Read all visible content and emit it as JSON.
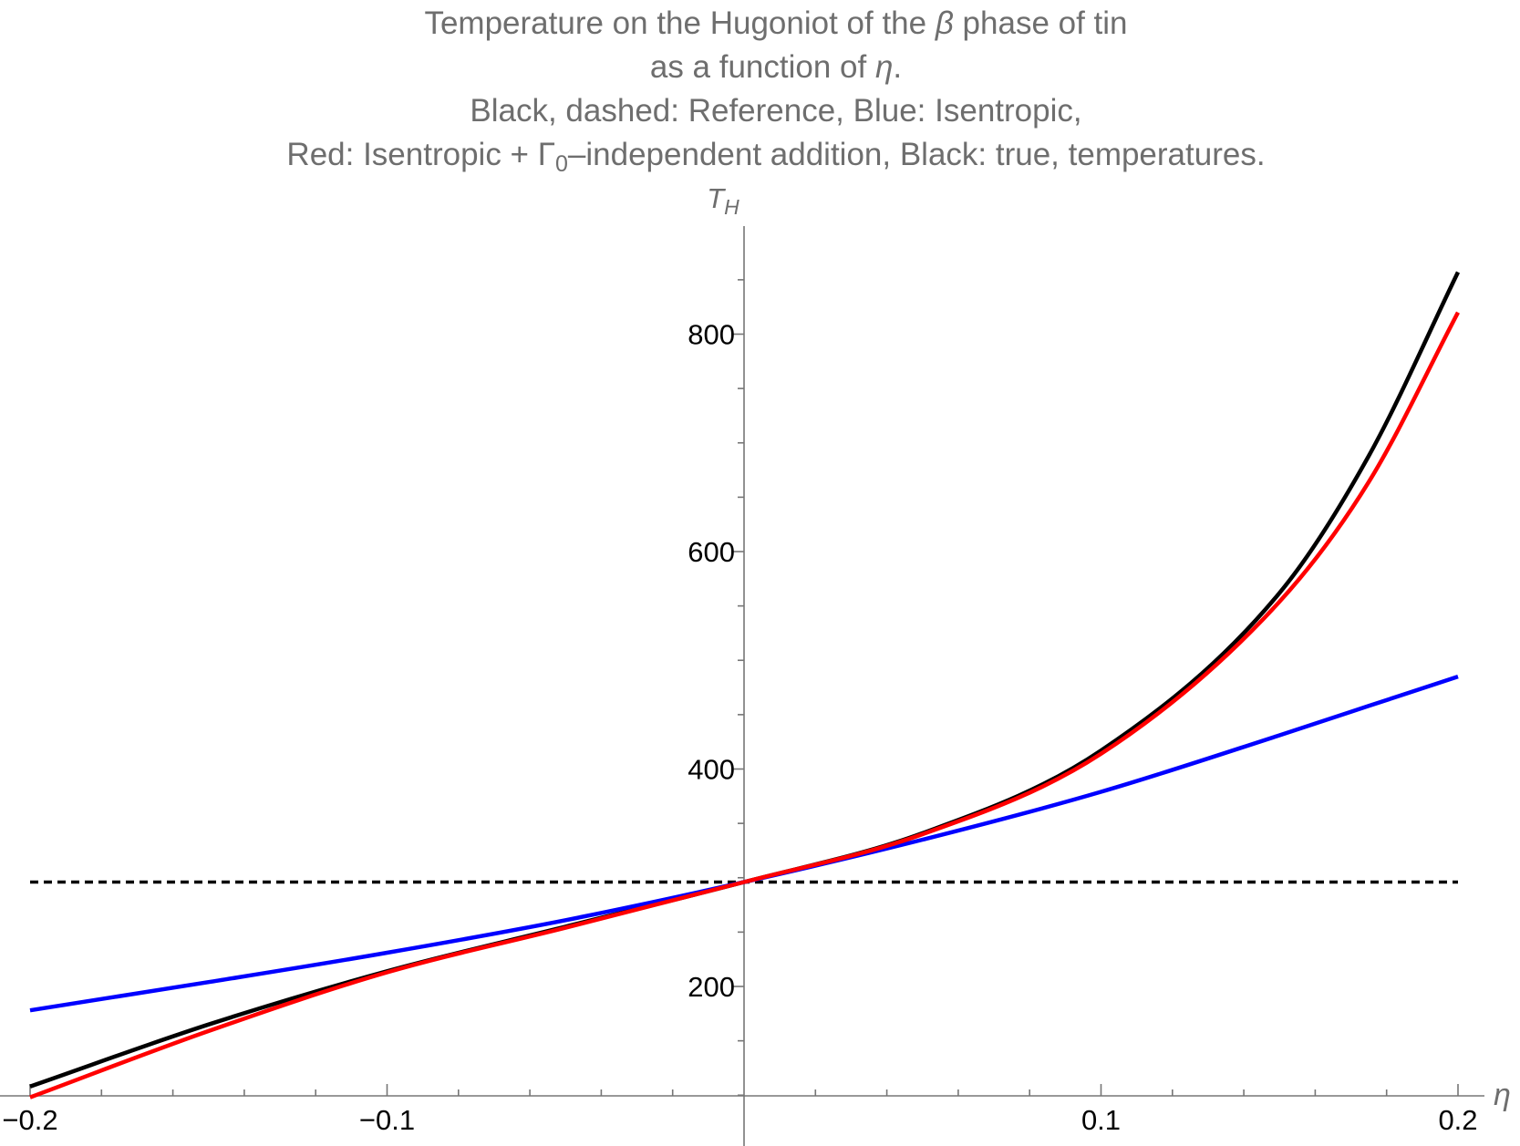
{
  "page": {
    "background": "#ffffff"
  },
  "title": {
    "color": "#6e6e6e",
    "lines": [
      [
        {
          "t": "Temperature on the Hugoniot of the "
        },
        {
          "t": "β",
          "i": true
        },
        {
          "t": " phase of tin"
        }
      ],
      [
        {
          "t": "as a function of "
        },
        {
          "t": "η",
          "i": true
        },
        {
          "t": "."
        }
      ],
      [
        {
          "t": "Black, dashed: Reference, Blue: Isentropic,"
        }
      ],
      [
        {
          "t": "Red: Isentropic + "
        },
        {
          "t": "Γ"
        },
        {
          "t": "0",
          "sub": true
        },
        {
          "t": "–independent addition, Black: true, temperatures."
        }
      ]
    ]
  },
  "chart_data": {
    "type": "line",
    "title": "Temperature on the Hugoniot of the β phase of tin as a function of η.",
    "legend_note": "Black, dashed: Reference, Blue: Isentropic, Red: Isentropic + Γ0–independent addition, Black: true, temperatures.",
    "xlabel": "η",
    "ylabel_base": "T",
    "ylabel_sub": "H",
    "label_color": "#6e6e6e",
    "axis_color": "#767676",
    "tick_label_color": "#000000",
    "grid": false,
    "xlim": [
      -0.208,
      0.208
    ],
    "ylim": [
      53,
      900
    ],
    "x_ticks_major": [
      {
        "v": -0.2,
        "label": "−0.2"
      },
      {
        "v": -0.1,
        "label": "−0.1"
      },
      {
        "v": 0.1,
        "label": "0.1"
      },
      {
        "v": 0.2,
        "label": "0.2"
      }
    ],
    "x_minor_step": 0.02,
    "y_ticks_major": [
      {
        "v": 200,
        "label": "200"
      },
      {
        "v": 400,
        "label": "400"
      },
      {
        "v": 600,
        "label": "600"
      },
      {
        "v": 800,
        "label": "800"
      }
    ],
    "y_minor_step": 50,
    "y_minor_range": [
      100,
      850
    ],
    "series": [
      {
        "name": "Reference",
        "desc": "Black, dashed: constant reference temperature",
        "color": "#000000",
        "dashed": true,
        "width": 3.5,
        "points": [
          [
            -0.2,
            296
          ],
          [
            0.2,
            296
          ]
        ]
      },
      {
        "name": "True temperatures",
        "desc": "Black, solid",
        "color": "#000000",
        "dashed": false,
        "width": 4.5,
        "points": [
          [
            -0.2,
            108
          ],
          [
            -0.15,
            165
          ],
          [
            -0.1,
            214
          ],
          [
            -0.05,
            255
          ],
          [
            0,
            296
          ],
          [
            0.05,
            341
          ],
          [
            0.1,
            417
          ],
          [
            0.15,
            562
          ],
          [
            0.175,
            688
          ],
          [
            0.2,
            857
          ]
        ]
      },
      {
        "name": "Isentropic",
        "desc": "Blue",
        "color": "#0000ff",
        "dashed": false,
        "width": 4.5,
        "points": [
          [
            -0.2,
            178
          ],
          [
            -0.15,
            204
          ],
          [
            -0.1,
            231
          ],
          [
            -0.05,
            261
          ],
          [
            0,
            296
          ],
          [
            0.05,
            335
          ],
          [
            0.1,
            379
          ],
          [
            0.15,
            431
          ],
          [
            0.175,
            458
          ],
          [
            0.2,
            485
          ]
        ]
      },
      {
        "name": "Isentropic + Γ0-independent addition",
        "desc": "Red",
        "color": "#ff0000",
        "dashed": false,
        "width": 4.5,
        "points": [
          [
            -0.2,
            98
          ],
          [
            -0.15,
            159
          ],
          [
            -0.1,
            213
          ],
          [
            -0.05,
            254
          ],
          [
            0,
            296
          ],
          [
            0.05,
            340
          ],
          [
            0.1,
            414
          ],
          [
            0.15,
            554
          ],
          [
            0.175,
            664
          ],
          [
            0.2,
            820
          ]
        ]
      }
    ]
  }
}
